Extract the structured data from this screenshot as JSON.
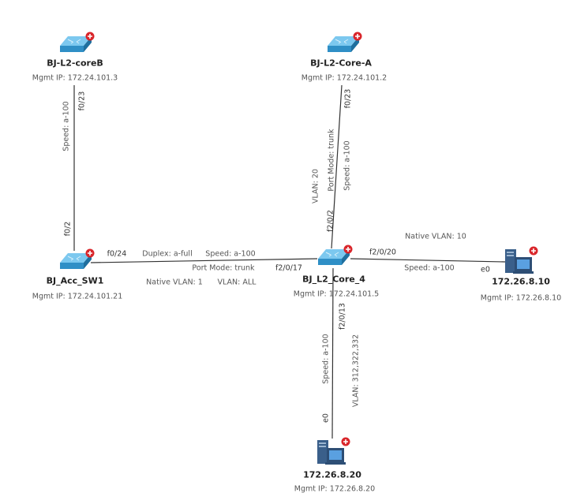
{
  "nodes": {
    "coreB": {
      "name": "BJ-L2-coreB",
      "mgmt": "Mgmt IP:  172.24.101.3",
      "icon": "switch-icon"
    },
    "coreA": {
      "name": "BJ-L2-Core-A",
      "mgmt": "Mgmt IP:  172.24.101.2",
      "icon": "switch-icon"
    },
    "acc": {
      "name": "BJ_Acc_SW1",
      "mgmt": "Mgmt IP:  172.24.101.21",
      "icon": "switch-icon"
    },
    "core4": {
      "name": "BJ_L2_Core_4",
      "mgmt": "Mgmt IP:  172.24.101.5",
      "icon": "switch-icon"
    },
    "host10": {
      "name": "172.26.8.10",
      "mgmt": "Mgmt IP:  172.26.8.10",
      "icon": "server-icon"
    },
    "host20": {
      "name": "172.26.8.20",
      "mgmt": "Mgmt IP:  172.26.8.20",
      "icon": "server-icon"
    }
  },
  "links": {
    "coreB_acc": {
      "port_a": "f0/23",
      "speed": "Speed: a-100",
      "port_b": "f0/2"
    },
    "acc_core4": {
      "port_a": "f0/24",
      "duplex": "Duplex: a-full",
      "speed": "Speed: a-100",
      "port_mode": "Port Mode: trunk",
      "native_vlan": "Native VLAN: 1",
      "vlan": "VLAN: ALL",
      "port_b": "f2/0/17"
    },
    "coreA_core4": {
      "port_a": "f0/23",
      "speed": "Speed: a-100",
      "port_mode": "Port Mode: trunk",
      "vlan": "VLAN: 20",
      "port_b": "f2/0/2"
    },
    "core4_host10": {
      "native_vlan": "Native VLAN: 10",
      "port_a": "f2/0/20",
      "speed": "Speed: a-100",
      "port_b": "e0"
    },
    "core4_host20": {
      "port_a": "f2/0/13",
      "speed": "Speed: a-100",
      "vlan": "VLAN: 312,322,332",
      "port_b": "e0"
    }
  },
  "colors": {
    "link": "#333333",
    "switch": "#3fa9e0",
    "server": "#3a5f8a",
    "badge": "#d9262b"
  }
}
